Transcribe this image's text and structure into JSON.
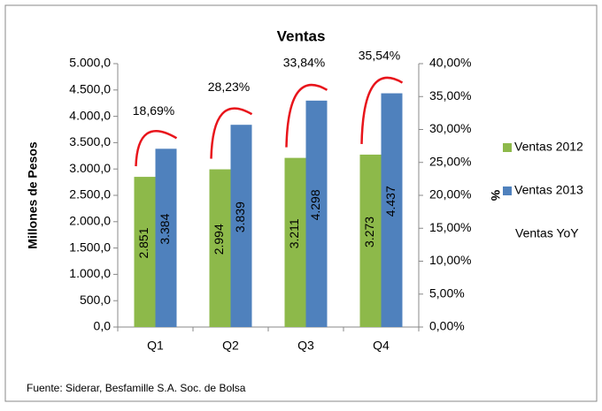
{
  "chart_data": {
    "type": "bar",
    "title": "Ventas",
    "categories": [
      "Q1",
      "Q2",
      "Q3",
      "Q4"
    ],
    "series": [
      {
        "name": "Ventas 2012",
        "color": "#8db94a",
        "values": [
          2851,
          2994,
          3211,
          3273
        ],
        "value_labels": [
          "2.851",
          "2.994",
          "3.211",
          "3.273"
        ]
      },
      {
        "name": "Ventas 2013",
        "color": "#4f81bd",
        "values": [
          3384,
          3839,
          4298,
          4437
        ],
        "value_labels": [
          "3.384",
          "3.839",
          "4.298",
          "4.437"
        ]
      },
      {
        "name": "Ventas YoY",
        "color": "#e8141b",
        "axis": "y2",
        "values": [
          18.69,
          28.23,
          33.84,
          35.54
        ],
        "value_labels": [
          "18,69%",
          "28,23%",
          "33,84%",
          "35,54%"
        ]
      }
    ],
    "ylabel": "Millones de Pesos",
    "y2label": "%",
    "ylim": [
      0,
      5000
    ],
    "yticks": [
      {
        "value": 0,
        "label": "0,0"
      },
      {
        "value": 500,
        "label": "500,0"
      },
      {
        "value": 1000,
        "label": "1.000,0"
      },
      {
        "value": 1500,
        "label": "1.500,0"
      },
      {
        "value": 2000,
        "label": "2.000,0"
      },
      {
        "value": 2500,
        "label": "2.500,0"
      },
      {
        "value": 3000,
        "label": "3.000,0"
      },
      {
        "value": 3500,
        "label": "3.500,0"
      },
      {
        "value": 4000,
        "label": "4.000,0"
      },
      {
        "value": 4500,
        "label": "4.500,0"
      },
      {
        "value": 5000,
        "label": "5.000,0"
      }
    ],
    "y2lim": [
      0,
      40
    ],
    "y2ticks": [
      {
        "value": 0,
        "label": "0,00%"
      },
      {
        "value": 5,
        "label": "5,00%"
      },
      {
        "value": 10,
        "label": "10,00%"
      },
      {
        "value": 15,
        "label": "15,00%"
      },
      {
        "value": 20,
        "label": "20,00%"
      },
      {
        "value": 25,
        "label": "25,00%"
      },
      {
        "value": 30,
        "label": "30,00%"
      },
      {
        "value": 35,
        "label": "35,00%"
      },
      {
        "value": 40,
        "label": "40,00%"
      }
    ],
    "grid": false,
    "legend": "right",
    "source": "Fuente: Siderar, Besfamille S.A. Soc. de Bolsa"
  }
}
